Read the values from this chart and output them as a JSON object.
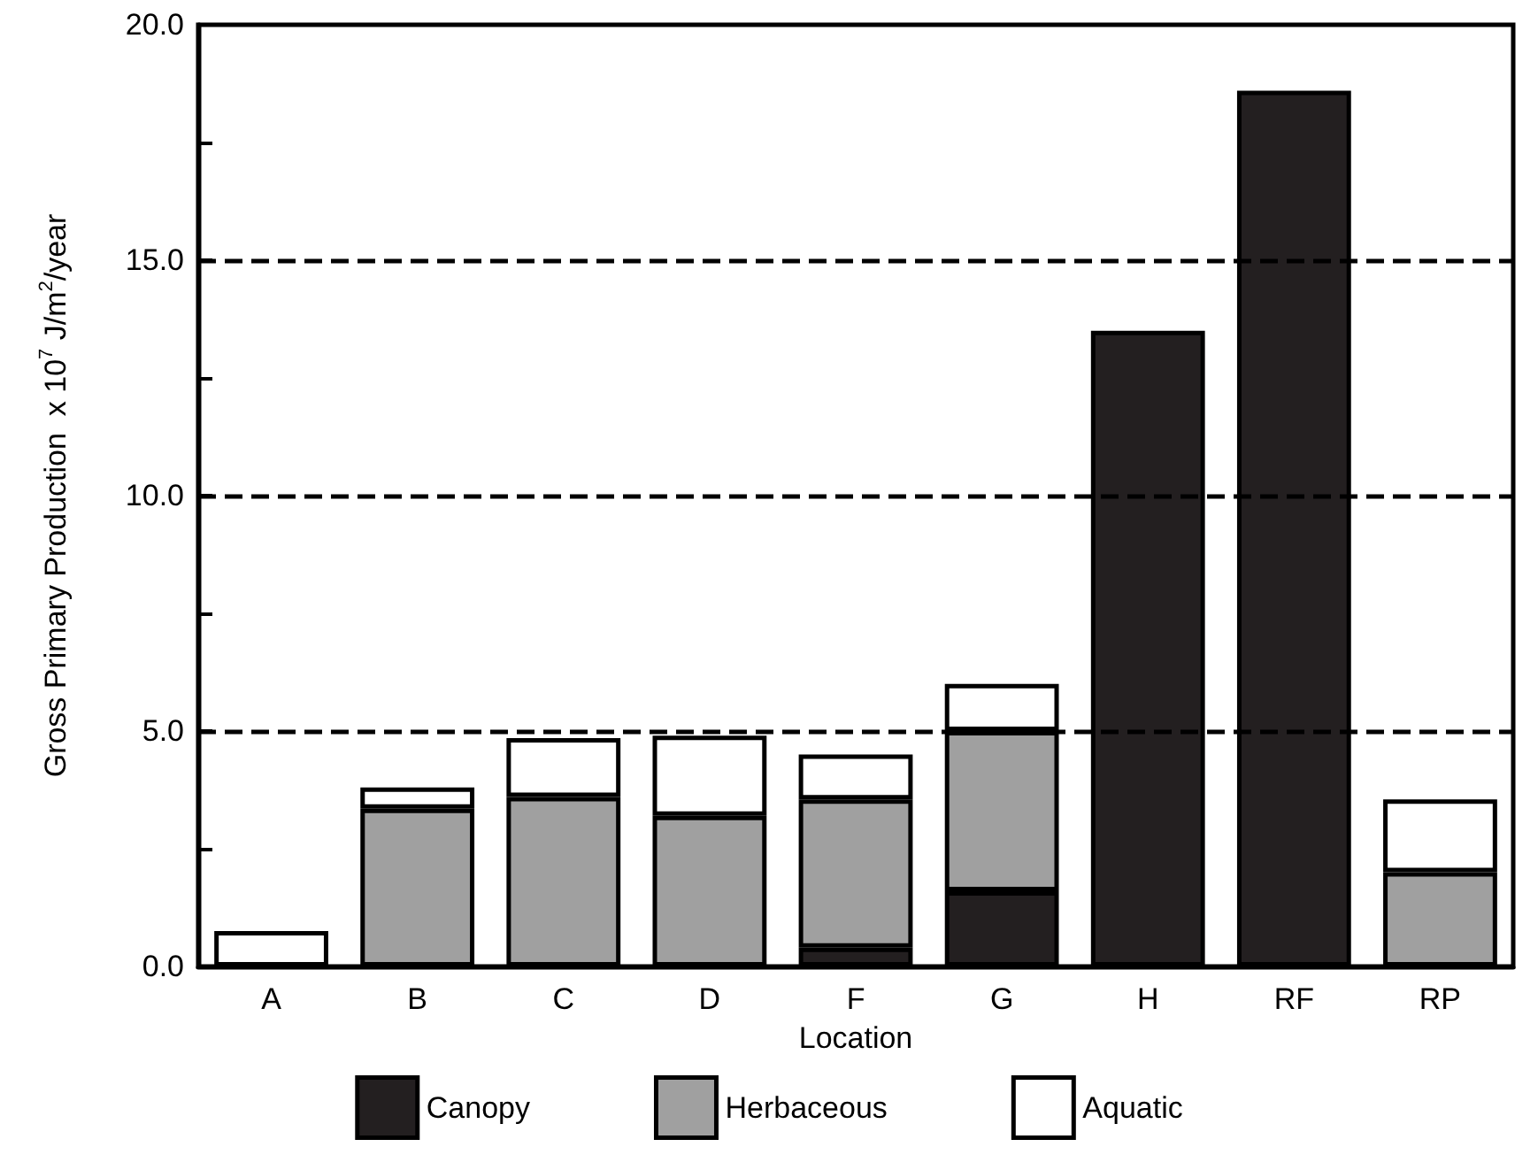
{
  "chart_data": {
    "type": "bar",
    "stacked": true,
    "xlabel": "Location",
    "ylabel": "Gross Primary Production  x 10$^{7}$ J/m$^{2}$/year",
    "categories": [
      "A",
      "B",
      "C",
      "D",
      "F",
      "G",
      "H",
      "RF",
      "RP"
    ],
    "series": [
      {
        "name": "Canopy",
        "color": "#231f20",
        "values": [
          null,
          null,
          null,
          null,
          0.4,
          1.6,
          13.5,
          18.6,
          null
        ]
      },
      {
        "name": "Herbaceous",
        "color": "#a0a0a0",
        "values": [
          null,
          3.35,
          3.6,
          3.2,
          3.15,
          3.4,
          null,
          null,
          2.0
        ]
      },
      {
        "name": "Aquatic",
        "color": "#ffffff",
        "values": [
          0.75,
          0.45,
          1.25,
          1.7,
          0.95,
          1.0,
          null,
          null,
          1.55
        ]
      }
    ],
    "ylim": [
      0,
      20
    ],
    "yticks": [
      {
        "value": 0,
        "label": "0.0"
      },
      {
        "value": 2.5,
        "label": null
      },
      {
        "value": 5,
        "label": "5.0"
      },
      {
        "value": 7.5,
        "label": null
      },
      {
        "value": 10,
        "label": "10.0"
      },
      {
        "value": 12.5,
        "label": null
      },
      {
        "value": 15,
        "label": "15.0"
      },
      {
        "value": 17.5,
        "label": null
      },
      {
        "value": 20,
        "label": "20.0"
      }
    ],
    "grid": "y",
    "line_style": "dashed",
    "legend": "bottom"
  }
}
